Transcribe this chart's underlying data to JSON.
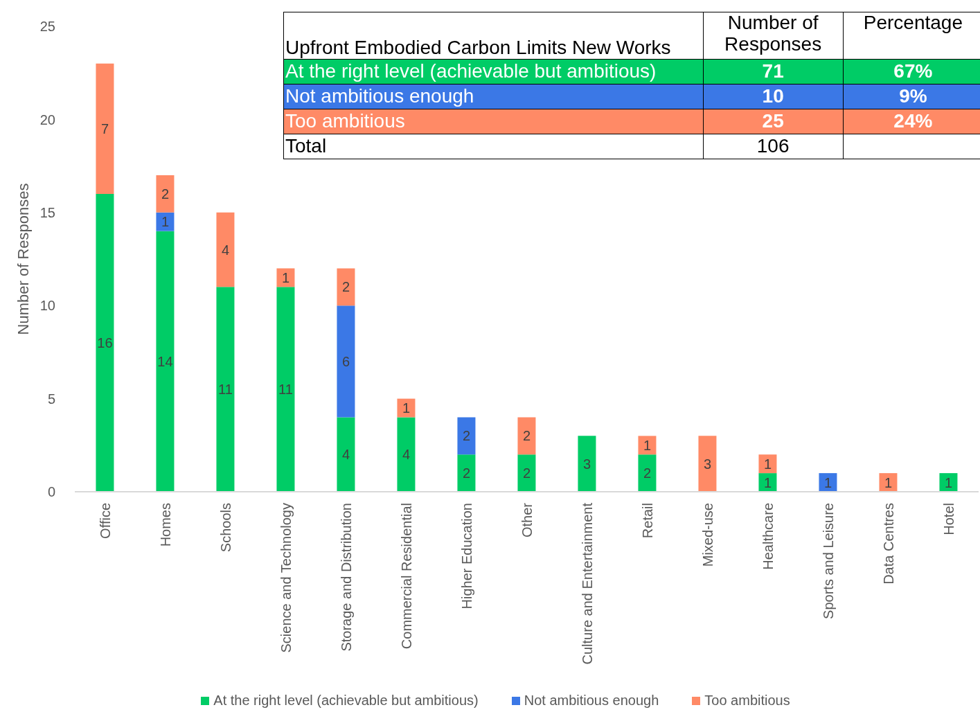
{
  "chart_data": {
    "type": "bar",
    "stacked": true,
    "ylabel": "Number of Responses",
    "categories": [
      "Office",
      "Homes",
      "Schools",
      "Science and Technology",
      "Storage and Distribution",
      "Commercial Residential",
      "Higher Education",
      "Other",
      "Culture and Entertainment",
      "Retail",
      "Mixed-use",
      "Healthcare",
      "Sports and Leisure",
      "Data Centres",
      "Hotel"
    ],
    "series": [
      {
        "name": "At the right level (achievable but ambitious)",
        "color": "#00cc66",
        "values": [
          16,
          14,
          11,
          11,
          4,
          4,
          2,
          2,
          3,
          2,
          null,
          1,
          null,
          null,
          1
        ]
      },
      {
        "name": "Not ambitious enough",
        "color": "#3b78e6",
        "values": [
          null,
          1,
          null,
          null,
          6,
          null,
          2,
          null,
          null,
          null,
          null,
          null,
          1,
          null,
          null
        ]
      },
      {
        "name": "Too ambitious",
        "color": "#ff8a66",
        "values": [
          7,
          2,
          4,
          1,
          2,
          1,
          null,
          2,
          null,
          1,
          3,
          1,
          null,
          1,
          null
        ]
      }
    ],
    "ylim": [
      0,
      25
    ],
    "yticks": [
      0,
      5,
      10,
      15,
      20,
      25
    ],
    "grid": false,
    "legend": "bottom",
    "data_labels": true,
    "annotations": [
      "Upfront Embodied Carbon Limits New Works",
      "Number of Responses",
      "Percentage",
      "At the right level (achievable but ambitious)",
      "71",
      "67%",
      "Not ambitious enough",
      "10",
      "9%",
      "Too ambitious",
      "25",
      "24%",
      "Total",
      "106"
    ]
  }
}
